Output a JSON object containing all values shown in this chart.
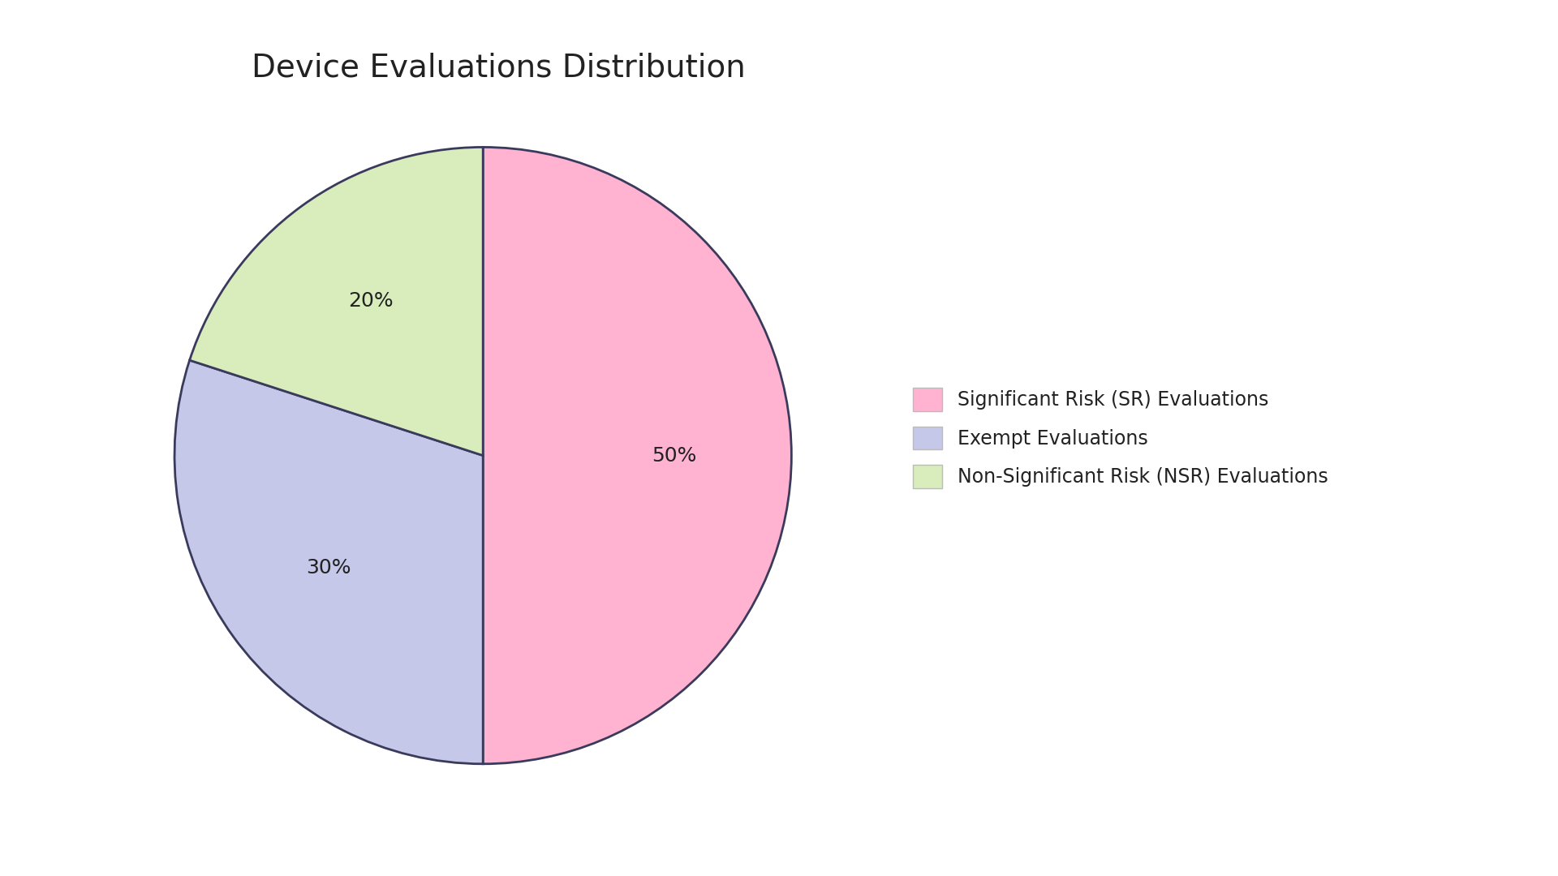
{
  "title": "Device Evaluations Distribution",
  "slices": [
    50,
    30,
    20
  ],
  "labels": [
    "Significant Risk (SR) Evaluations",
    "Exempt Evaluations",
    "Non-Significant Risk (NSR) Evaluations"
  ],
  "colors": [
    "#FFB3D1",
    "#C5C8E8",
    "#D8EDBB"
  ],
  "edge_color": "#3a3a5c",
  "edge_width": 2.0,
  "startangle": 90,
  "title_fontsize": 28,
  "autopct_fontsize": 18,
  "legend_fontsize": 17,
  "background_color": "#ffffff",
  "text_color": "#222222",
  "pctdistance": 0.62
}
